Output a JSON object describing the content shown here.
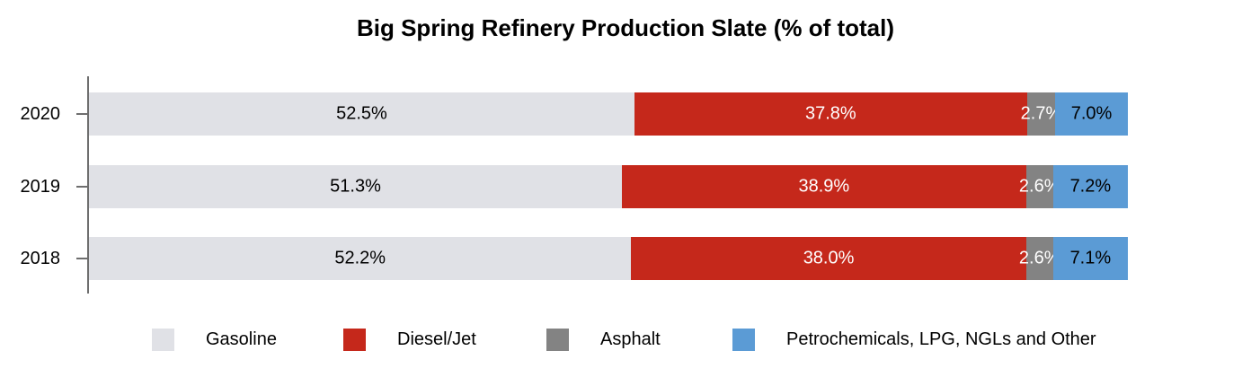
{
  "title": "Big Spring Refinery Production Slate (% of total)",
  "chart_data": {
    "type": "bar",
    "orientation": "horizontal",
    "stacked": true,
    "stack_total": 100,
    "title": "Big Spring Refinery Production Slate (% of total)",
    "categories": [
      "2020",
      "2019",
      "2018"
    ],
    "series": [
      {
        "name": "Gasoline",
        "color": "#e0e1e6",
        "label_color": "#000000",
        "values": [
          52.5,
          51.3,
          52.2
        ],
        "labels": [
          "52.5%",
          "51.3%",
          "52.2%"
        ]
      },
      {
        "name": "Diesel/Jet",
        "color": "#c5281b",
        "label_color": "#ffffff",
        "values": [
          37.8,
          38.9,
          38.0
        ],
        "labels": [
          "37.8%",
          "38.9%",
          "38.0%"
        ]
      },
      {
        "name": "Asphalt",
        "color": "#838383",
        "label_color": "#ffffff",
        "values": [
          2.7,
          2.6,
          2.6
        ],
        "labels": [
          "2.7%",
          "2.6%",
          "2.6%"
        ]
      },
      {
        "name": "Petrochemicals, LPG, NGLs and Other",
        "color": "#5b9bd5",
        "label_color": "#000000",
        "values": [
          7.0,
          7.2,
          7.1
        ],
        "labels": [
          "7.0%",
          "7.2%",
          "7.1%"
        ]
      }
    ],
    "xlim": [
      0,
      100
    ],
    "grid": false,
    "legend_position": "bottom",
    "axis_color": "#6e6e6e"
  },
  "legend": {
    "items": [
      {
        "label": "Gasoline",
        "color": "#e0e1e6"
      },
      {
        "label": "Diesel/Jet",
        "color": "#c5281b"
      },
      {
        "label": "Asphalt",
        "color": "#838383"
      },
      {
        "label": "Petrochemicals, LPG, NGLs and Other",
        "color": "#5b9bd5"
      }
    ]
  }
}
